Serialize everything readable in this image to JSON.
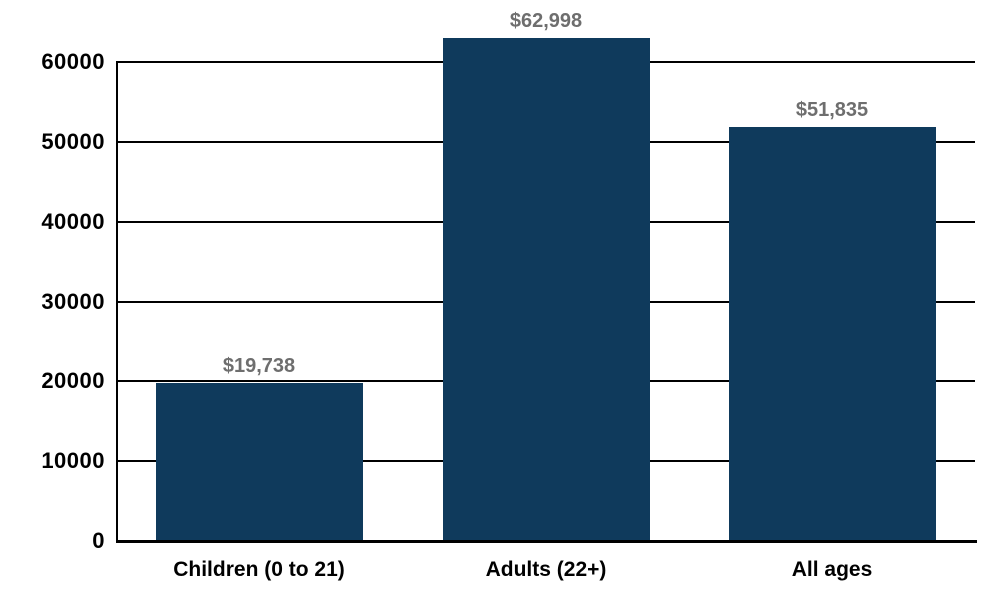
{
  "chart_data": {
    "type": "bar",
    "categories": [
      "Children (0 to 21)",
      "Adults (22+)",
      "All ages"
    ],
    "values": [
      19738,
      62998,
      51835
    ],
    "bar_labels": [
      "$19,738",
      "$62,998",
      "$51,835"
    ],
    "yticks": [
      0,
      10000,
      20000,
      30000,
      40000,
      50000,
      60000
    ],
    "ytick_labels": [
      "0",
      "10000",
      "20000",
      "30000",
      "40000",
      "50000",
      "60000"
    ],
    "ylim": [
      0,
      60000
    ],
    "title": "",
    "xlabel": "",
    "ylabel": "",
    "grid": "horizontal",
    "legend": "none",
    "colors": {
      "bar": "#0F3A5C",
      "bar_label": "#6E6E6E",
      "axis": "#000000",
      "tick_label": "#000000",
      "background": "#FFFFFF"
    }
  }
}
